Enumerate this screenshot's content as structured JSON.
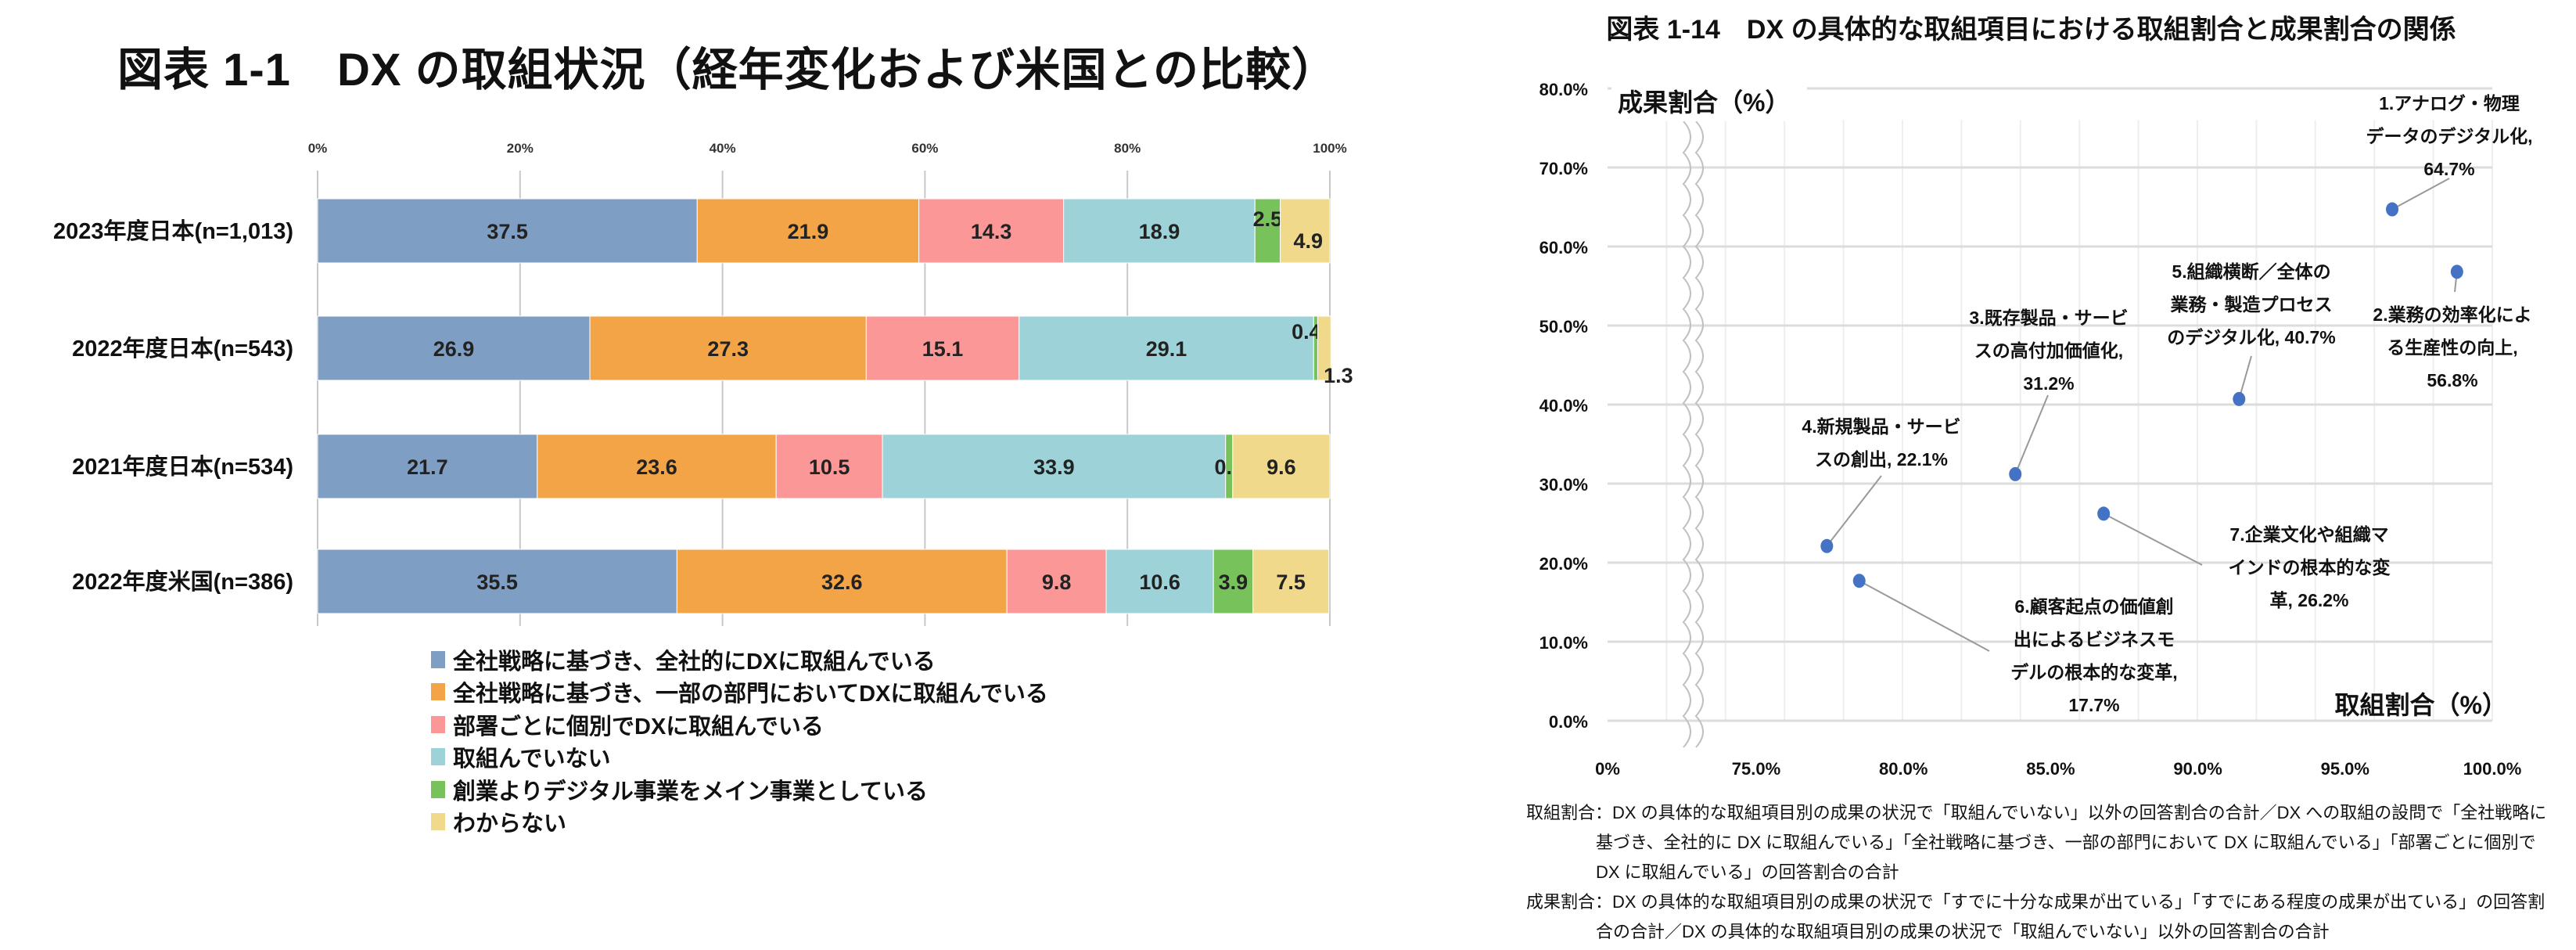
{
  "chart_data": [
    {
      "type": "bar",
      "orientation": "horizontal-stacked",
      "title": "図表 1-1　DX の取組状況（経年変化および米国との比較）",
      "xlim": [
        0,
        100
      ],
      "xticks": [
        "0%",
        "20%",
        "40%",
        "60%",
        "80%",
        "100%"
      ],
      "grid": true,
      "legend_position": "bottom",
      "categories": [
        "2023年度日本(n=1,013)",
        "2022年度日本(n=543)",
        "2021年度日本(n=534)",
        "2022年度米国(n=386)"
      ],
      "series": [
        {
          "name": "全社戦略に基づき、全社的にDXに取組んでいる",
          "color": "#7f9ec4",
          "values": [
            37.5,
            26.9,
            21.7,
            35.5
          ]
        },
        {
          "name": "全社戦略に基づき、一部の部門においてDXに取組んでいる",
          "color": "#f2a446",
          "values": [
            21.9,
            27.3,
            23.6,
            32.6
          ]
        },
        {
          "name": "部署ごとに個別でDXに取組んでいる",
          "color": "#fc9797",
          "values": [
            14.3,
            15.1,
            10.5,
            9.8
          ]
        },
        {
          "name": "取組んでいない",
          "color": "#9dd3d8",
          "values": [
            18.9,
            29.1,
            33.9,
            10.6
          ]
        },
        {
          "name": "創業よりデジタル事業をメイン事業としている",
          "color": "#77c25a",
          "values": [
            2.5,
            0.4,
            0.7,
            3.9
          ]
        },
        {
          "name": "わからない",
          "color": "#f0d98b",
          "values": [
            4.9,
            1.3,
            9.6,
            7.5
          ]
        }
      ]
    },
    {
      "type": "scatter",
      "title": "図表 1-14　DX の具体的な取組項目における取組割合と成果割合の関係",
      "xlabel": "取組割合（%）",
      "ylabel": "成果割合（%）",
      "xlim": [
        75,
        100
      ],
      "x_axis_break": "0% to 75%",
      "ylim": [
        0,
        80
      ],
      "xticks": [
        "0%",
        "75.0%",
        "80.0%",
        "85.0%",
        "90.0%",
        "95.0%",
        "100.0%"
      ],
      "yticks": [
        "0.0%",
        "10.0%",
        "20.0%",
        "30.0%",
        "40.0%",
        "50.0%",
        "60.0%",
        "70.0%",
        "80.0%"
      ],
      "grid": true,
      "point_color": "#4472c4",
      "points": [
        {
          "label": [
            "1.アナログ・物理",
            "データのデジタル化,",
            "64.7%"
          ],
          "x": 96.6,
          "y": 64.7
        },
        {
          "label": [
            "2.業務の効率化によ",
            "る生産性の向上,",
            "56.8%"
          ],
          "x": 98.8,
          "y": 56.8
        },
        {
          "label": [
            "3.既存製品・サービ",
            "スの高付加価値化,",
            "31.2%"
          ],
          "x": 83.8,
          "y": 31.2
        },
        {
          "label": [
            "4.新規製品・サービ",
            "スの創出, 22.1%"
          ],
          "x": 77.4,
          "y": 22.1
        },
        {
          "label": [
            "5.組織横断／全体の",
            "業務・製造プロセス",
            "のデジタル化, 40.7%"
          ],
          "x": 91.4,
          "y": 40.7
        },
        {
          "label": [
            "6.顧客起点の価値創",
            "出によるビジネスモ",
            "デルの根本的な変革,",
            "17.7%"
          ],
          "x": 78.5,
          "y": 17.7
        },
        {
          "label": [
            "7.企業文化や組織マ",
            "インドの根本的な変",
            "革, 26.2%"
          ],
          "x": 86.8,
          "y": 26.2
        }
      ]
    }
  ],
  "notes": [
    "取組割合：DX の具体的な取組項目別の成果の状況で「取組んでいない」以外の回答割合の合計／DX への取組の設問で「全社戦略に基づき、全社的に DX に取組んでいる」「全社戦略に基づき、一部の部門において DX に取組んでいる」「部署ごとに個別で DX に取組んでいる」の回答割合の合計",
    "成果割合：DX の具体的な取組項目別の成果の状況で「すでに十分な成果が出ている」「すでにある程度の成果が出ている」の回答割合の合計／DX の具体的な取組項目別の成果の状況で「取組んでいない」以外の回答割合の合計"
  ]
}
